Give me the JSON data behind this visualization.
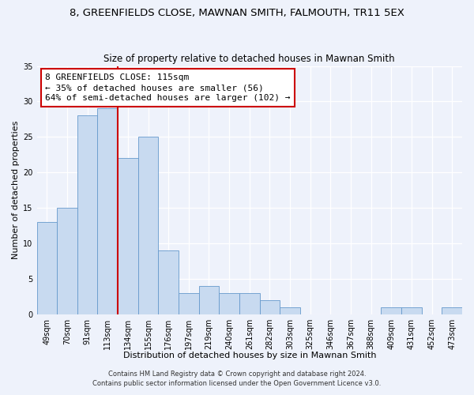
{
  "title": "8, GREENFIELDS CLOSE, MAWNAN SMITH, FALMOUTH, TR11 5EX",
  "subtitle": "Size of property relative to detached houses in Mawnan Smith",
  "xlabel": "Distribution of detached houses by size in Mawnan Smith",
  "ylabel": "Number of detached properties",
  "bar_labels": [
    "49sqm",
    "70sqm",
    "91sqm",
    "113sqm",
    "134sqm",
    "155sqm",
    "176sqm",
    "197sqm",
    "219sqm",
    "240sqm",
    "261sqm",
    "282sqm",
    "303sqm",
    "325sqm",
    "346sqm",
    "367sqm",
    "388sqm",
    "409sqm",
    "431sqm",
    "452sqm",
    "473sqm"
  ],
  "bar_values": [
    13,
    15,
    28,
    29,
    22,
    25,
    9,
    3,
    4,
    3,
    3,
    2,
    1,
    0,
    0,
    0,
    0,
    1,
    1,
    0,
    1
  ],
  "bar_color": "#c8daf0",
  "bar_edge_color": "#6699cc",
  "ylim": [
    0,
    35
  ],
  "yticks": [
    0,
    5,
    10,
    15,
    20,
    25,
    30,
    35
  ],
  "property_label": "8 GREENFIELDS CLOSE: 115sqm",
  "annotation_line1": "← 35% of detached houses are smaller (56)",
  "annotation_line2": "64% of semi-detached houses are larger (102) →",
  "vline_x": 3.5,
  "vline_color": "#cc0000",
  "annotation_box_color": "#ffffff",
  "annotation_box_edge": "#cc0000",
  "footer_line1": "Contains HM Land Registry data © Crown copyright and database right 2024.",
  "footer_line2": "Contains public sector information licensed under the Open Government Licence v3.0.",
  "bg_color": "#eef2fb",
  "plot_bg_color": "#eef2fb",
  "grid_color": "#ffffff",
  "title_fontsize": 9.5,
  "subtitle_fontsize": 8.5,
  "axis_label_fontsize": 8,
  "tick_fontsize": 7,
  "footer_fontsize": 6,
  "annotation_fontsize": 8
}
